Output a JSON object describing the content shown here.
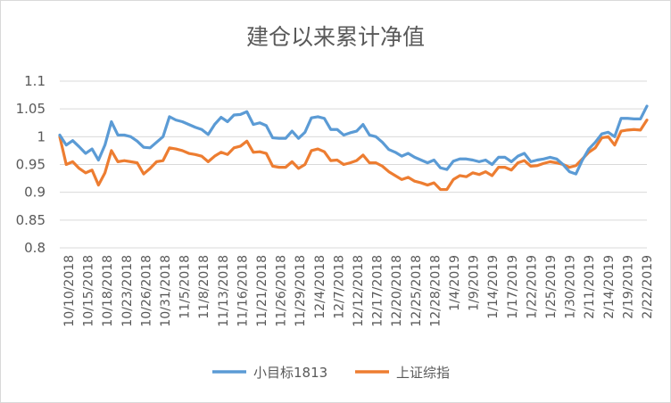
{
  "chart_data": {
    "type": "line",
    "title": "建仓以来累计净值",
    "xlabel": "",
    "ylabel": "",
    "ylim": [
      0.8,
      1.1
    ],
    "yticks": [
      "0.8",
      "0.85",
      "0.9",
      "0.95",
      "1",
      "1.05",
      "1.1"
    ],
    "grid": true,
    "legend_position": "bottom",
    "x_tick_labels": [
      "10/10/2018",
      "10/15/2018",
      "10/18/2018",
      "10/23/2018",
      "10/26/2018",
      "10/31/2018",
      "11/5/2018",
      "11/8/2018",
      "11/13/2018",
      "11/16/2018",
      "11/21/2018",
      "11/26/2018",
      "11/29/2018",
      "12/4/2018",
      "12/7/2018",
      "12/12/2018",
      "12/17/2018",
      "12/20/2018",
      "12/25/2018",
      "12/28/2018",
      "1/4/2019",
      "1/9/2019",
      "1/14/2019",
      "1/17/2019",
      "1/22/2019",
      "1/25/2019",
      "1/30/2019",
      "2/11/2019",
      "2/14/2019",
      "2/19/2019",
      "2/22/2019"
    ],
    "series": [
      {
        "name": "小目标1813",
        "color": "#5b9bd5",
        "values": [
          1.003,
          0.985,
          0.993,
          0.982,
          0.97,
          0.978,
          0.958,
          0.985,
          1.027,
          1.003,
          1.003,
          1.0,
          0.992,
          0.981,
          0.98,
          0.99,
          1.0,
          1.036,
          1.03,
          1.027,
          1.022,
          1.017,
          1.013,
          1.004,
          1.022,
          1.035,
          1.027,
          1.039,
          1.04,
          1.045,
          1.022,
          1.025,
          1.02,
          0.998,
          0.997,
          0.997,
          1.01,
          0.997,
          1.008,
          1.034,
          1.036,
          1.033,
          1.013,
          1.013,
          1.003,
          1.007,
          1.01,
          1.022,
          1.003,
          1.0,
          0.99,
          0.977,
          0.972,
          0.965,
          0.97,
          0.963,
          0.958,
          0.953,
          0.958,
          0.944,
          0.941,
          0.956,
          0.96,
          0.96,
          0.958,
          0.955,
          0.958,
          0.95,
          0.963,
          0.963,
          0.955,
          0.965,
          0.97,
          0.955,
          0.958,
          0.96,
          0.963,
          0.96,
          0.95,
          0.937,
          0.933,
          0.958,
          0.978,
          0.99,
          1.005,
          1.008,
          1.0,
          1.033,
          1.033,
          1.032,
          1.032,
          1.055
        ]
      },
      {
        "name": "上证综指",
        "color": "#ed7d31",
        "values": [
          1.0,
          0.95,
          0.955,
          0.943,
          0.935,
          0.94,
          0.913,
          0.935,
          0.975,
          0.955,
          0.957,
          0.955,
          0.953,
          0.933,
          0.943,
          0.955,
          0.957,
          0.98,
          0.978,
          0.975,
          0.97,
          0.968,
          0.965,
          0.955,
          0.965,
          0.972,
          0.968,
          0.98,
          0.983,
          0.992,
          0.972,
          0.973,
          0.97,
          0.947,
          0.945,
          0.945,
          0.955,
          0.943,
          0.95,
          0.975,
          0.978,
          0.973,
          0.957,
          0.958,
          0.95,
          0.953,
          0.957,
          0.967,
          0.953,
          0.953,
          0.947,
          0.937,
          0.93,
          0.923,
          0.927,
          0.92,
          0.917,
          0.913,
          0.917,
          0.905,
          0.905,
          0.923,
          0.93,
          0.928,
          0.935,
          0.932,
          0.937,
          0.93,
          0.945,
          0.945,
          0.94,
          0.953,
          0.957,
          0.947,
          0.948,
          0.952,
          0.955,
          0.953,
          0.95,
          0.945,
          0.948,
          0.96,
          0.972,
          0.98,
          0.998,
          1.0,
          0.985,
          1.01,
          1.012,
          1.013,
          1.012,
          1.03
        ]
      }
    ]
  }
}
